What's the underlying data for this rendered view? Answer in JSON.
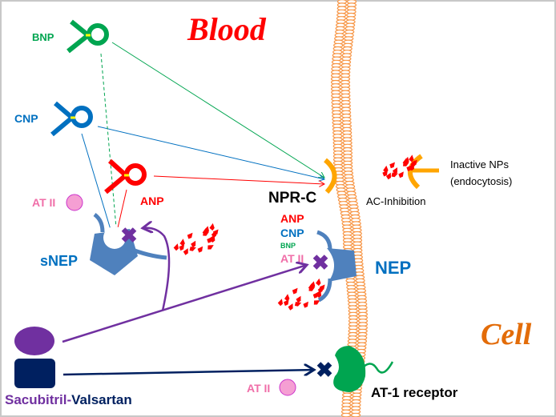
{
  "labels": {
    "blood": "Blood",
    "cell": "Cell",
    "bnp": "BNP",
    "cnp": "CNP",
    "anp": "ANP",
    "at2_top": "AT II",
    "snep": "sNEP",
    "nprc": "NPR-C",
    "ac_inhibition": "AC-Inhibition",
    "inactive_nps": "Inactive NPs",
    "endocytosis": "(endocytosis)",
    "nep_anp": "ANP",
    "nep_cnp": "CNP",
    "nep_bnp": "BNP",
    "nep_at2": "AT II",
    "nep": "NEP",
    "drug_sacubitril": "Sacubitril-",
    "drug_valsartan": "Valsartan",
    "at2_bottom": "AT II",
    "at1_receptor": "AT-1 receptor"
  },
  "colors": {
    "bnp": "#00a550",
    "cnp": "#0070c0",
    "anp": "#ff0000",
    "at2": "#f06ea8",
    "at2_fill": "#f59fd3",
    "enzyme": "#4f81bd",
    "sacubitril": "#7030a0",
    "valsartan": "#002060",
    "membrane": "#f79646",
    "nprc": "#ffa500",
    "at1": "#00a550",
    "cell": "#e36c09",
    "blood": "#ff0000"
  }
}
